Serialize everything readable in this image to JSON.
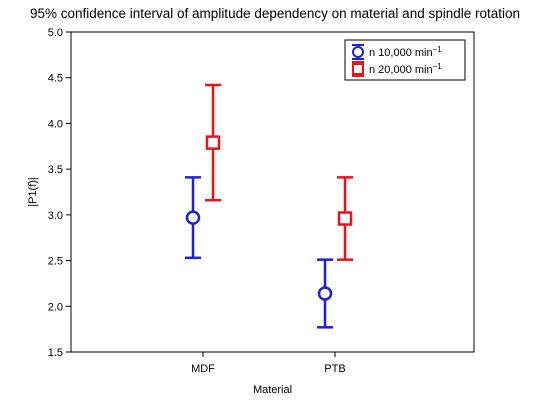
{
  "chart_data": {
    "type": "scatter",
    "title": "95% confidence interval of amplitude dependency on material and spindle rotation",
    "xlabel": "Material",
    "ylabel": "|P1(f)|",
    "categories": [
      "MDF",
      "PTB"
    ],
    "ylim": [
      1.5,
      5.0
    ],
    "yticks": [
      "1.5",
      "2.0",
      "2.5",
      "3.0",
      "3.5",
      "4.0",
      "4.5",
      "5.0"
    ],
    "grid": false,
    "legend_position": "top-right",
    "series": [
      {
        "name": "n 10,000 min",
        "name_superscript": "−1",
        "color": "#1f1fd6",
        "marker": "circle",
        "points": [
          {
            "category": "MDF",
            "mean": 2.97,
            "lower": 2.53,
            "upper": 3.41
          },
          {
            "category": "PTB",
            "mean": 2.14,
            "lower": 1.77,
            "upper": 2.51
          }
        ]
      },
      {
        "name": "n 20,000 min",
        "name_superscript": "−1",
        "color": "#e8141b",
        "marker": "square",
        "points": [
          {
            "category": "MDF",
            "mean": 3.79,
            "lower": 3.16,
            "upper": 4.42
          },
          {
            "category": "PTB",
            "mean": 2.96,
            "lower": 2.51,
            "upper": 3.41
          }
        ]
      }
    ]
  }
}
